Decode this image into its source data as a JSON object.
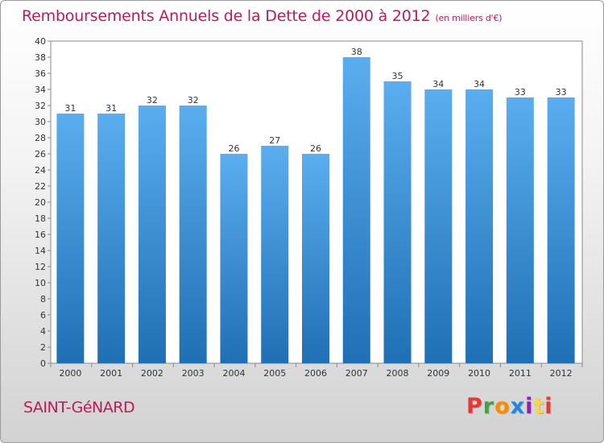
{
  "header": {
    "title": "Remboursements Annuels de la Dette de 2000 à 2012",
    "unit": "(en milliers d'€)"
  },
  "footer": {
    "commune": "SAINT-GéNARD",
    "logo_text": "Proxiti"
  },
  "colors": {
    "accent": "#c2185b",
    "bar_top": "#5aaef0",
    "bar_bottom": "#1f6fb4",
    "logo": [
      "#e53935",
      "#43a047",
      "#fb8c00",
      "#1e88e5",
      "#8e24aa",
      "#fdd835",
      "#e53935"
    ]
  },
  "chart_data": {
    "type": "bar",
    "title": "Remboursements Annuels de la Dette de 2000 à 2012",
    "categories": [
      "2000",
      "2001",
      "2002",
      "2003",
      "2004",
      "2005",
      "2006",
      "2007",
      "2008",
      "2009",
      "2010",
      "2011",
      "2012"
    ],
    "values": [
      31,
      31,
      32,
      32,
      26,
      27,
      26,
      38,
      35,
      34,
      34,
      33,
      33
    ],
    "ylim": [
      0,
      40
    ],
    "yticks": [
      0,
      2,
      4,
      6,
      8,
      10,
      12,
      14,
      16,
      18,
      20,
      22,
      24,
      26,
      28,
      30,
      32,
      34,
      36,
      38,
      40
    ],
    "grid": false,
    "data_labels": true
  }
}
